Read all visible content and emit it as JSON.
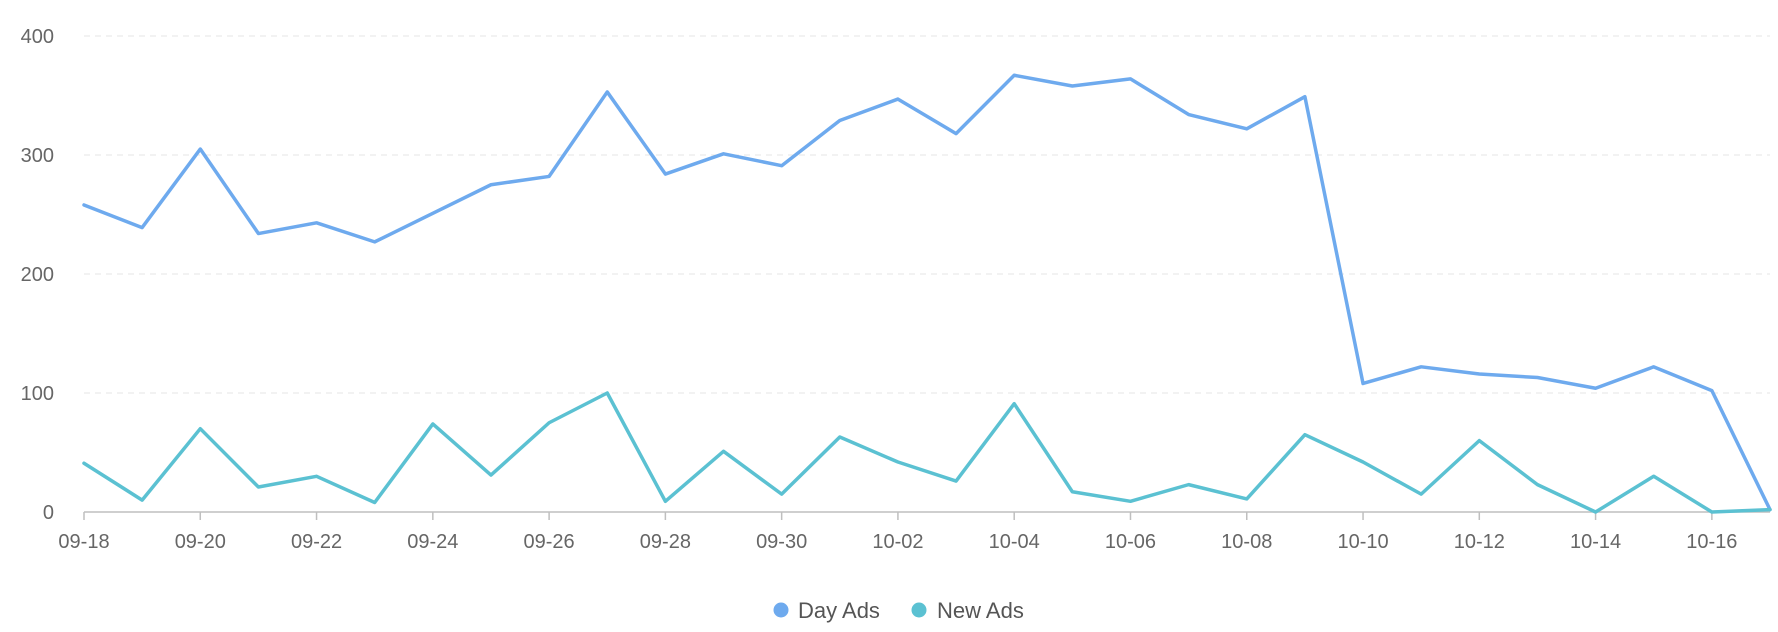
{
  "chart_data": {
    "type": "line",
    "grid": true,
    "ylim": [
      0,
      400
    ],
    "y_ticks": [
      0,
      100,
      200,
      300,
      400
    ],
    "legend_position": "bottom-center",
    "x": [
      "09-18",
      "09-19",
      "09-20",
      "09-21",
      "09-22",
      "09-23",
      "09-24",
      "09-25",
      "09-26",
      "09-27",
      "09-28",
      "09-29",
      "09-30",
      "10-01",
      "10-02",
      "10-03",
      "10-04",
      "10-05",
      "10-06",
      "10-07",
      "10-08",
      "10-09",
      "10-10",
      "10-11",
      "10-12",
      "10-13",
      "10-14",
      "10-15",
      "10-16",
      "10-17"
    ],
    "x_tick_labels": [
      "09-18",
      "09-20",
      "09-22",
      "09-24",
      "09-26",
      "09-28",
      "09-30",
      "10-02",
      "10-04",
      "10-06",
      "10-08",
      "10-10",
      "10-12",
      "10-14",
      "10-16"
    ],
    "series": [
      {
        "name": "Day Ads",
        "color": "#6eaaee",
        "values": [
          258,
          239,
          305,
          234,
          243,
          227,
          251,
          275,
          282,
          353,
          284,
          301,
          291,
          329,
          347,
          318,
          367,
          358,
          364,
          334,
          322,
          349,
          108,
          122,
          116,
          113,
          104,
          122,
          102,
          2
        ]
      },
      {
        "name": "New Ads",
        "color": "#5bc1d2",
        "values": [
          41,
          10,
          70,
          21,
          30,
          8,
          74,
          31,
          75,
          100,
          9,
          51,
          15,
          63,
          42,
          26,
          91,
          17,
          9,
          23,
          11,
          65,
          42,
          15,
          60,
          23,
          0,
          30,
          0,
          2
        ]
      }
    ]
  }
}
